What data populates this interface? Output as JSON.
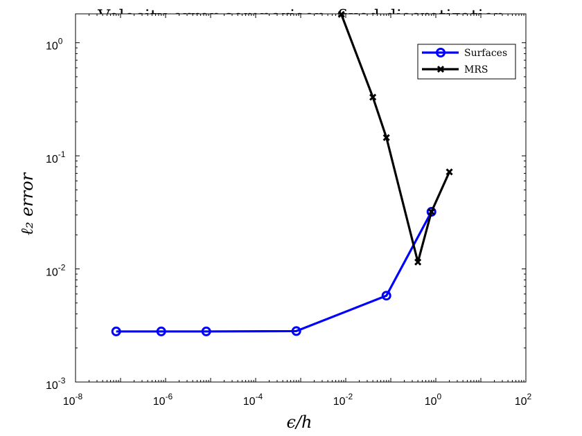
{
  "chart_data": {
    "type": "line",
    "title": "Velocity error comparison: fixed discretization",
    "xlabel": "ϵ/h",
    "ylabel": "ℓ₂ error",
    "xscale": "log",
    "yscale": "log",
    "xlim": [
      1e-08,
      100
    ],
    "ylim": [
      0.001,
      1.8
    ],
    "grid": false,
    "legend_position": "top-right",
    "x_ticks": [
      {
        "value": 1e-08,
        "base": "10",
        "exp": "-8"
      },
      {
        "value": 1e-06,
        "base": "10",
        "exp": "-6"
      },
      {
        "value": 0.0001,
        "base": "10",
        "exp": "-4"
      },
      {
        "value": 0.01,
        "base": "10",
        "exp": "-2"
      },
      {
        "value": 1,
        "base": "10",
        "exp": "0"
      },
      {
        "value": 100,
        "base": "10",
        "exp": "2"
      }
    ],
    "y_ticks": [
      {
        "value": 0.001,
        "base": "10",
        "exp": "-3"
      },
      {
        "value": 0.01,
        "base": "10",
        "exp": "-2"
      },
      {
        "value": 0.1,
        "base": "10",
        "exp": "-1"
      },
      {
        "value": 1,
        "base": "10",
        "exp": "0"
      }
    ],
    "series": [
      {
        "name": "Surfaces",
        "color": "#0000ff",
        "marker": "circle",
        "x": [
          8e-08,
          8e-07,
          8e-06,
          0.0008,
          0.08,
          0.8
        ],
        "y": [
          0.0028,
          0.0028,
          0.0028,
          0.00282,
          0.0058,
          0.032
        ]
      },
      {
        "name": "MRS",
        "color": "#000000",
        "marker": "x",
        "x": [
          0.008,
          0.04,
          0.08,
          0.4,
          0.8,
          2.0
        ],
        "y": [
          1.78,
          0.33,
          0.145,
          0.0115,
          0.032,
          0.072
        ]
      }
    ]
  }
}
